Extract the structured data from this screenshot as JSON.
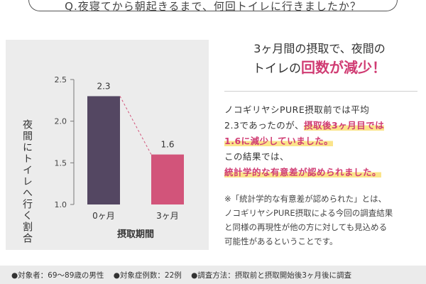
{
  "question": "Q.夜寝てから朝起きるまで、何回トイレに行きましたか？",
  "headline": {
    "line1": "3ヶ月間の摂取で、夜間の",
    "line2_pre": "トイレの",
    "line2_accent": "回数が減少！"
  },
  "description": {
    "p1_line1": "ノコギリヤシPURE摂取前では平均",
    "p1_line2_pre": "2.3であったのが、",
    "p1_line2_hl": "摂取後3ヶ月目では",
    "p1_line3_hl": "1.6に減少していました。",
    "p2_line1": "この結果では、",
    "p2_line2_hl": "統計学的な有意差が認められました。"
  },
  "note": {
    "line1": "※「統計学的な有意差が認められた」とは、",
    "line2": "ノコギリヤシPURE摂取による今回の調査結果",
    "line3": "と同様の再現性が他の方に対しても見込める",
    "line4": "可能性があるということです。"
  },
  "footer": {
    "item1": "●対象者：69～89歳の男性",
    "item2": "●対象症例数：22例",
    "item3": "●調査方法：摂取前と摂取開始後3ヶ月後に調査"
  },
  "colors": {
    "bar_before": "#544762",
    "bar_after": "#d2547a",
    "accent": "#d03c73",
    "highlight": "#fbe48a",
    "panel": "#ececec"
  },
  "chart_data": {
    "type": "bar",
    "categories": [
      "0ヶ月",
      "3ヶ月"
    ],
    "values": [
      2.3,
      1.6
    ],
    "data_labels": [
      "2.3",
      "1.6"
    ],
    "yticks": [
      "2.5",
      "2.0",
      "1.5",
      "1.0"
    ],
    "ylim": [
      1.0,
      2.5
    ],
    "xlabel": "摂取期間",
    "ylabel": "夜間にトイレへ行く割合",
    "connector": "dashed",
    "grid": false
  }
}
